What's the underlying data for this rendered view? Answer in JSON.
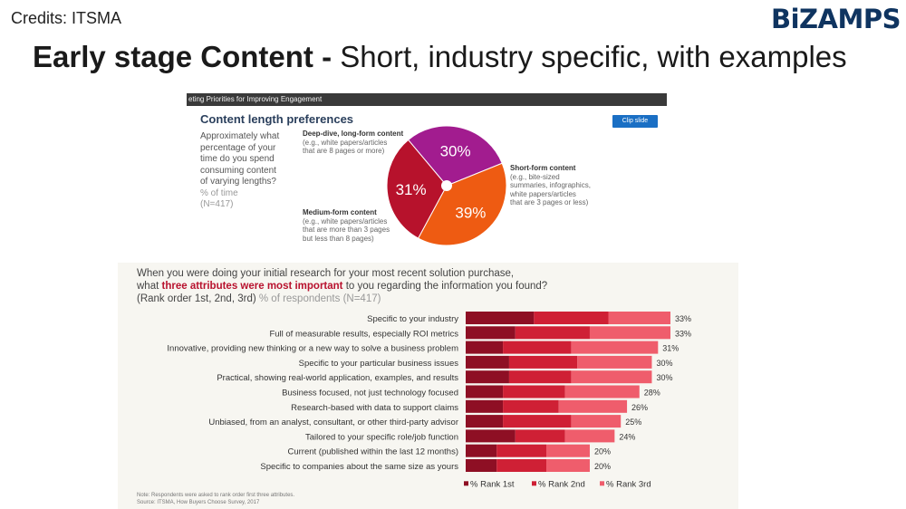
{
  "header": {
    "credits": "Credits: ITSMA",
    "logo": "BiZAMPS",
    "title_bold": "Early stage Content - ",
    "title_rest": "Short, industry specific, with examples"
  },
  "pie_panel": {
    "header_text": "eting Priorities for Improving Engagement",
    "clip_button": "Clip slide",
    "question_lines": [
      "Approximately what",
      "percentage of your",
      "time do you spend",
      "consuming content",
      "of varying lengths?"
    ],
    "unit_note": "% of time",
    "n_note": "(N=417)"
  },
  "bar_panel": {
    "question_line1": "When you were doing your initial research for your most recent solution purchase,",
    "question_line2_pre": "what ",
    "question_line2_highlight": "three attributes were most important",
    "question_line2_post": " to you regarding the information you found?",
    "question_line3": "(Rank order 1st, 2nd, 3rd) ",
    "question_line3_muted": "% of respondents (N=417)",
    "note_line1": "Note: Respondents were asked to rank order first three attributes.",
    "note_line2": "Source: ITSMA, How Buyers Choose Survey, 2017"
  },
  "chart_data": [
    {
      "type": "pie",
      "title": "Content length preferences",
      "slices": [
        {
          "label": "Deep-dive, long-form content",
          "description": [
            "(e.g., white papers/articles",
            "that are 8 pages or more)"
          ],
          "value": 30,
          "value_label": "30%",
          "color": "#a21c8f"
        },
        {
          "label": "Short-form content",
          "description": [
            "(e.g., bite-sized",
            "summaries, infographics,",
            "white papers/articles",
            "that are 3 pages or less)"
          ],
          "value": 39,
          "value_label": "39%",
          "color": "#ee5b12"
        },
        {
          "label": "Medium-form content",
          "description": [
            "(e.g., white papers/articles",
            "that are more than 3 pages",
            "but less than 8 pages)"
          ],
          "value": 31,
          "value_label": "31%",
          "color": "#b7122c"
        }
      ]
    },
    {
      "type": "bar",
      "stacked": true,
      "orientation": "horizontal",
      "categories": [
        "Specific to your industry",
        "Full of measurable results, especially ROI metrics",
        "Innovative, providing new thinking or a new way to solve a business problem",
        "Specific to your particular business issues",
        "Practical, showing real-world application, examples, and results",
        "Business focused, not just technology focused",
        "Research-based with data to support claims",
        "Unbiased, from an analyst, consultant, or other third-party advisor",
        "Tailored to your specific role/job function",
        "Current (published within the last 12 months)",
        "Specific to companies about the same size as yours"
      ],
      "totals": [
        "33%",
        "33%",
        "31%",
        "30%",
        "30%",
        "28%",
        "26%",
        "25%",
        "24%",
        "20%",
        "20%"
      ],
      "series": [
        {
          "name": "% Rank 1st",
          "color": "#8e0f24",
          "values": [
            11,
            8,
            6,
            7,
            7,
            6,
            6,
            6,
            8,
            5,
            5
          ]
        },
        {
          "name": "% Rank 2nd",
          "color": "#cf2035",
          "values": [
            12,
            12,
            11,
            11,
            10,
            10,
            9,
            11,
            8,
            8,
            8
          ]
        },
        {
          "name": "% Rank 3rd",
          "color": "#ef5d6c",
          "values": [
            10,
            13,
            14,
            12,
            13,
            12,
            11,
            8,
            8,
            7,
            7
          ]
        }
      ],
      "xlim": [
        0,
        33
      ]
    }
  ]
}
